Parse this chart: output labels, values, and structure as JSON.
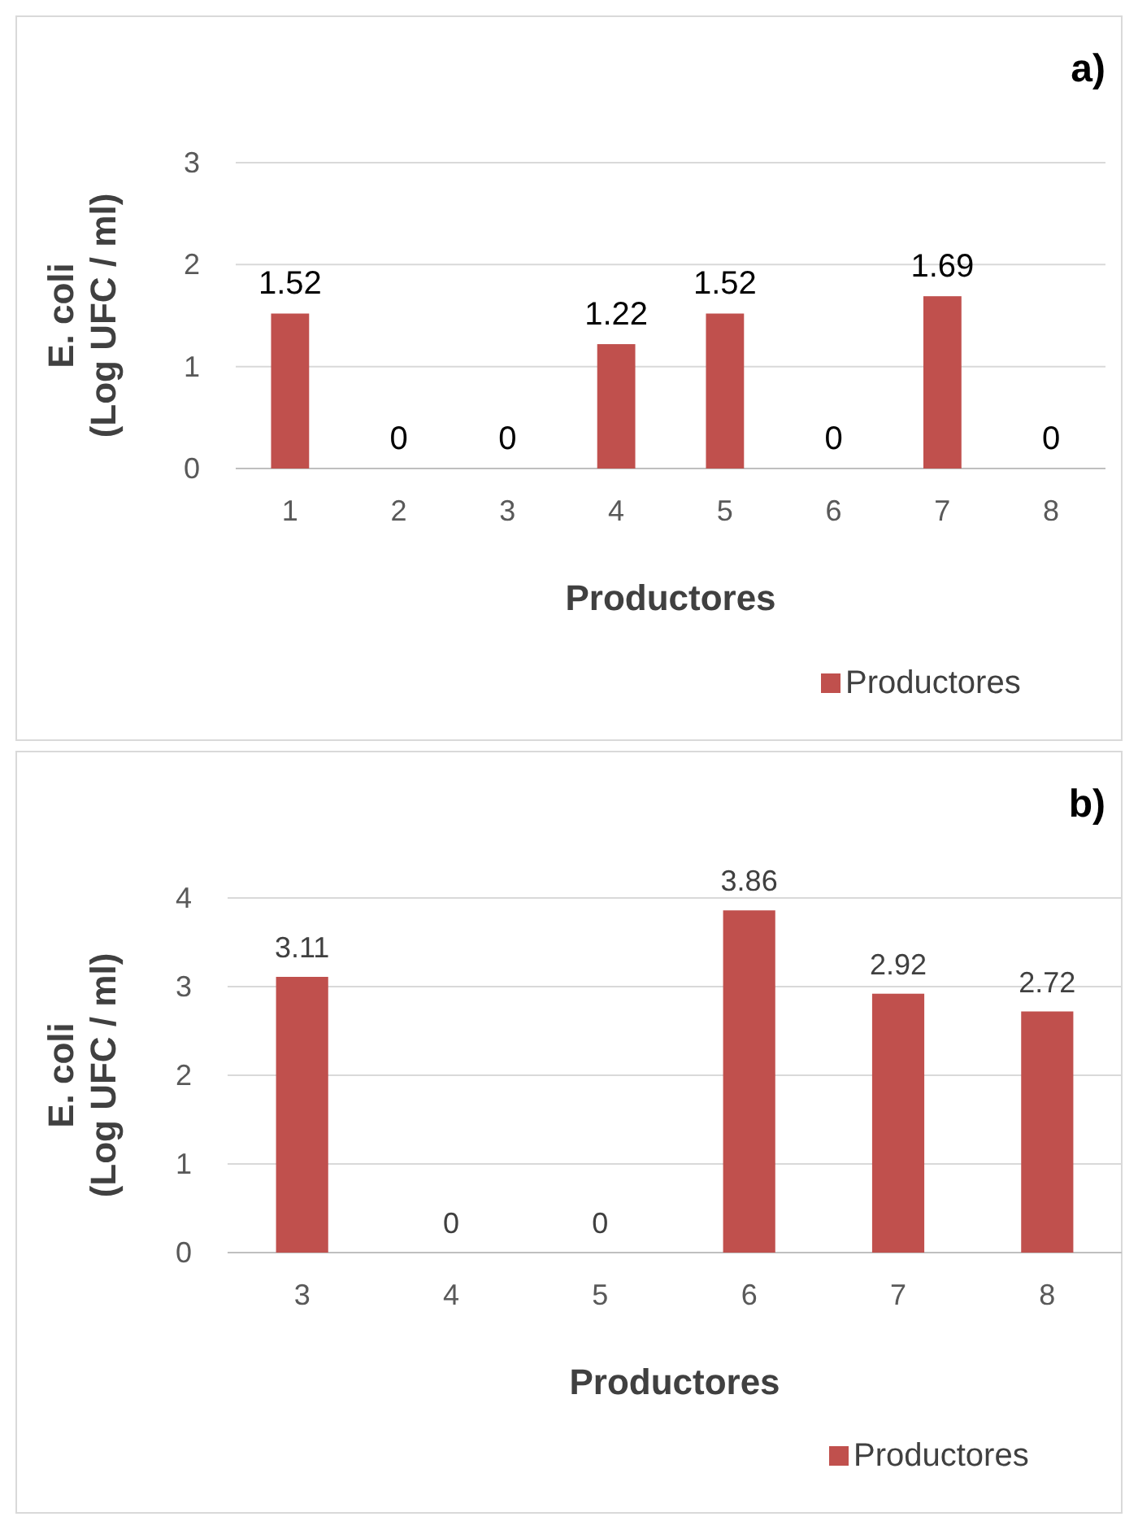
{
  "chart_data": [
    {
      "type": "bar",
      "title": "a)",
      "xlabel": "Productores",
      "ylabel": "E. coli\n(Log UFC / ml)",
      "categories": [
        "1",
        "2",
        "3",
        "4",
        "5",
        "6",
        "7",
        "8"
      ],
      "series": [
        {
          "name": "Productores",
          "color": "#c0504d",
          "values": [
            1.52,
            0,
            0,
            1.22,
            1.52,
            0,
            1.69,
            0
          ]
        }
      ],
      "ylim": [
        0,
        3
      ],
      "yticks": [
        0,
        1,
        2,
        3
      ],
      "grid": "y",
      "data_labels": true,
      "legend": "bottom right"
    },
    {
      "type": "bar",
      "title": "b)",
      "xlabel": "Productores",
      "ylabel": "E. coli\n(Log UFC / ml)",
      "categories": [
        "3",
        "4",
        "5",
        "6",
        "7",
        "8"
      ],
      "series": [
        {
          "name": "Productores",
          "color": "#c0504d",
          "values": [
            3.11,
            0,
            0,
            3.86,
            2.92,
            2.72
          ]
        }
      ],
      "ylim": [
        0,
        4
      ],
      "yticks": [
        0,
        1,
        2,
        3,
        4
      ],
      "grid": "y",
      "data_labels": true,
      "legend": "bottom right"
    }
  ]
}
